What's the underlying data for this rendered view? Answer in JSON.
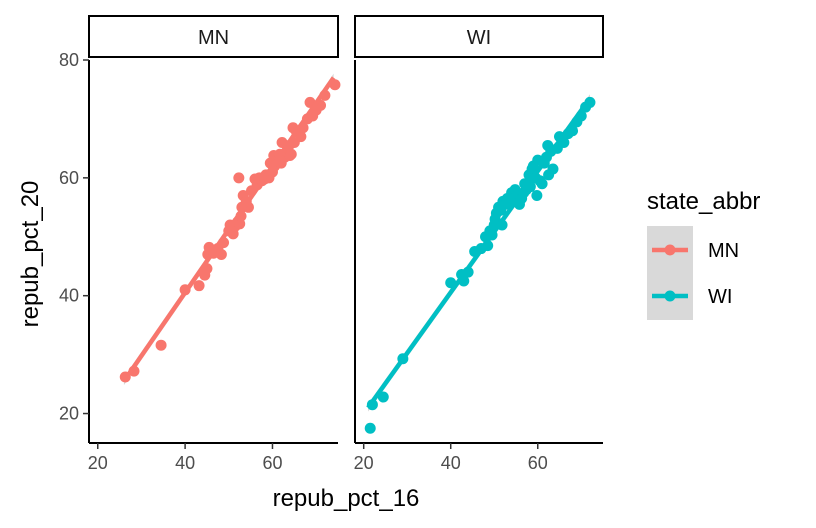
{
  "chart_data": {
    "type": "scatter",
    "facet_by": "state_abbr",
    "xlabel": "repub_pct_16",
    "ylabel": "repub_pct_20",
    "xlim": [
      18,
      75
    ],
    "ylim": [
      15,
      80
    ],
    "x_ticks": [
      20,
      40,
      60
    ],
    "y_ticks": [
      20,
      40,
      60,
      80
    ],
    "legend_title": "state_abbr",
    "legend_position": "right",
    "grid": false,
    "smooth": "linear",
    "facets": [
      "MN",
      "WI"
    ],
    "series": [
      {
        "name": "MN",
        "color": "#F8766D",
        "fit": {
          "x": [
            26,
            74
          ],
          "y": [
            25.5,
            77
          ]
        },
        "points": [
          [
            26.3,
            26.2
          ],
          [
            28.3,
            27.2
          ],
          [
            34.5,
            31.6
          ],
          [
            40.0,
            41.0
          ],
          [
            43.2,
            41.7
          ],
          [
            44.5,
            43.5
          ],
          [
            45.0,
            44.6
          ],
          [
            45.2,
            47.0
          ],
          [
            45.5,
            48.2
          ],
          [
            46.5,
            47.2
          ],
          [
            47.5,
            48.0
          ],
          [
            48.3,
            47.0
          ],
          [
            48.8,
            49.0
          ],
          [
            50.0,
            51.0
          ],
          [
            50.3,
            52.0
          ],
          [
            51.0,
            50.5
          ],
          [
            51.5,
            51.8
          ],
          [
            52.0,
            52.5
          ],
          [
            52.5,
            52.2
          ],
          [
            52.8,
            53.5
          ],
          [
            53.0,
            55.0
          ],
          [
            53.3,
            57.0
          ],
          [
            54.0,
            56.0
          ],
          [
            54.5,
            55.0
          ],
          [
            52.3,
            60.0
          ],
          [
            55.2,
            57.8
          ],
          [
            56.0,
            59.8
          ],
          [
            56.5,
            58.8
          ],
          [
            57.0,
            60.0
          ],
          [
            57.6,
            59.5
          ],
          [
            58.2,
            59.8
          ],
          [
            58.5,
            60.5
          ],
          [
            59.2,
            60.0
          ],
          [
            59.5,
            62.5
          ],
          [
            60.0,
            61.0
          ],
          [
            60.3,
            63.8
          ],
          [
            60.5,
            62.0
          ],
          [
            61.0,
            63.0
          ],
          [
            61.3,
            62.8
          ],
          [
            61.7,
            64.0
          ],
          [
            62.0,
            62.5
          ],
          [
            62.2,
            66.0
          ],
          [
            62.8,
            63.5
          ],
          [
            63.3,
            64.5
          ],
          [
            63.8,
            65.5
          ],
          [
            64.0,
            63.8
          ],
          [
            64.3,
            64.0
          ],
          [
            64.7,
            68.5
          ],
          [
            65.0,
            66.0
          ],
          [
            65.5,
            67.8
          ],
          [
            66.0,
            68.0
          ],
          [
            66.5,
            67.0
          ],
          [
            67.0,
            68.5
          ],
          [
            68.0,
            70.0
          ],
          [
            68.6,
            72.8
          ],
          [
            69.2,
            70.5
          ],
          [
            70.0,
            71.5
          ],
          [
            71.0,
            72.3
          ],
          [
            72.0,
            74.0
          ],
          [
            74.3,
            75.8
          ]
        ]
      },
      {
        "name": "WI",
        "color": "#00BFC4",
        "fit": {
          "x": [
            21,
            72
          ],
          "y": [
            21,
            73.5
          ]
        },
        "points": [
          [
            21.5,
            17.5
          ],
          [
            22.0,
            21.5
          ],
          [
            24.5,
            22.8
          ],
          [
            29.0,
            29.3
          ],
          [
            40.0,
            42.2
          ],
          [
            42.5,
            43.6
          ],
          [
            43.0,
            42.5
          ],
          [
            44.0,
            44.0
          ],
          [
            45.5,
            47.5
          ],
          [
            47.0,
            48.0
          ],
          [
            48.0,
            50.0
          ],
          [
            48.5,
            48.5
          ],
          [
            49.0,
            51.0
          ],
          [
            49.5,
            50.3
          ],
          [
            50.0,
            52.0
          ],
          [
            50.2,
            53.0
          ],
          [
            50.5,
            54.0
          ],
          [
            51.0,
            55.0
          ],
          [
            51.5,
            54.5
          ],
          [
            51.8,
            52.0
          ],
          [
            52.0,
            56.0
          ],
          [
            52.5,
            55.5
          ],
          [
            53.0,
            56.5
          ],
          [
            53.5,
            55.5
          ],
          [
            54.0,
            57.5
          ],
          [
            54.3,
            56.5
          ],
          [
            54.8,
            58.0
          ],
          [
            55.3,
            57.0
          ],
          [
            55.8,
            55.5
          ],
          [
            56.3,
            56.5
          ],
          [
            56.8,
            57.5
          ],
          [
            57.0,
            59.0
          ],
          [
            57.4,
            58.0
          ],
          [
            58.0,
            60.5
          ],
          [
            58.3,
            58.5
          ],
          [
            58.7,
            61.5
          ],
          [
            59.0,
            62.0
          ],
          [
            59.5,
            60.0
          ],
          [
            59.8,
            57.0
          ],
          [
            60.0,
            63.0
          ],
          [
            60.5,
            59.5
          ],
          [
            61.0,
            59.0
          ],
          [
            61.5,
            62.5
          ],
          [
            62.0,
            63.5
          ],
          [
            62.3,
            65.5
          ],
          [
            62.5,
            60.5
          ],
          [
            63.0,
            64.5
          ],
          [
            63.5,
            61.5
          ],
          [
            64.5,
            65.0
          ],
          [
            65.0,
            67.0
          ],
          [
            66.0,
            66.0
          ],
          [
            67.0,
            67.5
          ],
          [
            68.0,
            68.0
          ],
          [
            69.0,
            69.5
          ],
          [
            70.0,
            70.5
          ],
          [
            71.0,
            72.0
          ],
          [
            72.0,
            72.8
          ]
        ]
      }
    ]
  }
}
